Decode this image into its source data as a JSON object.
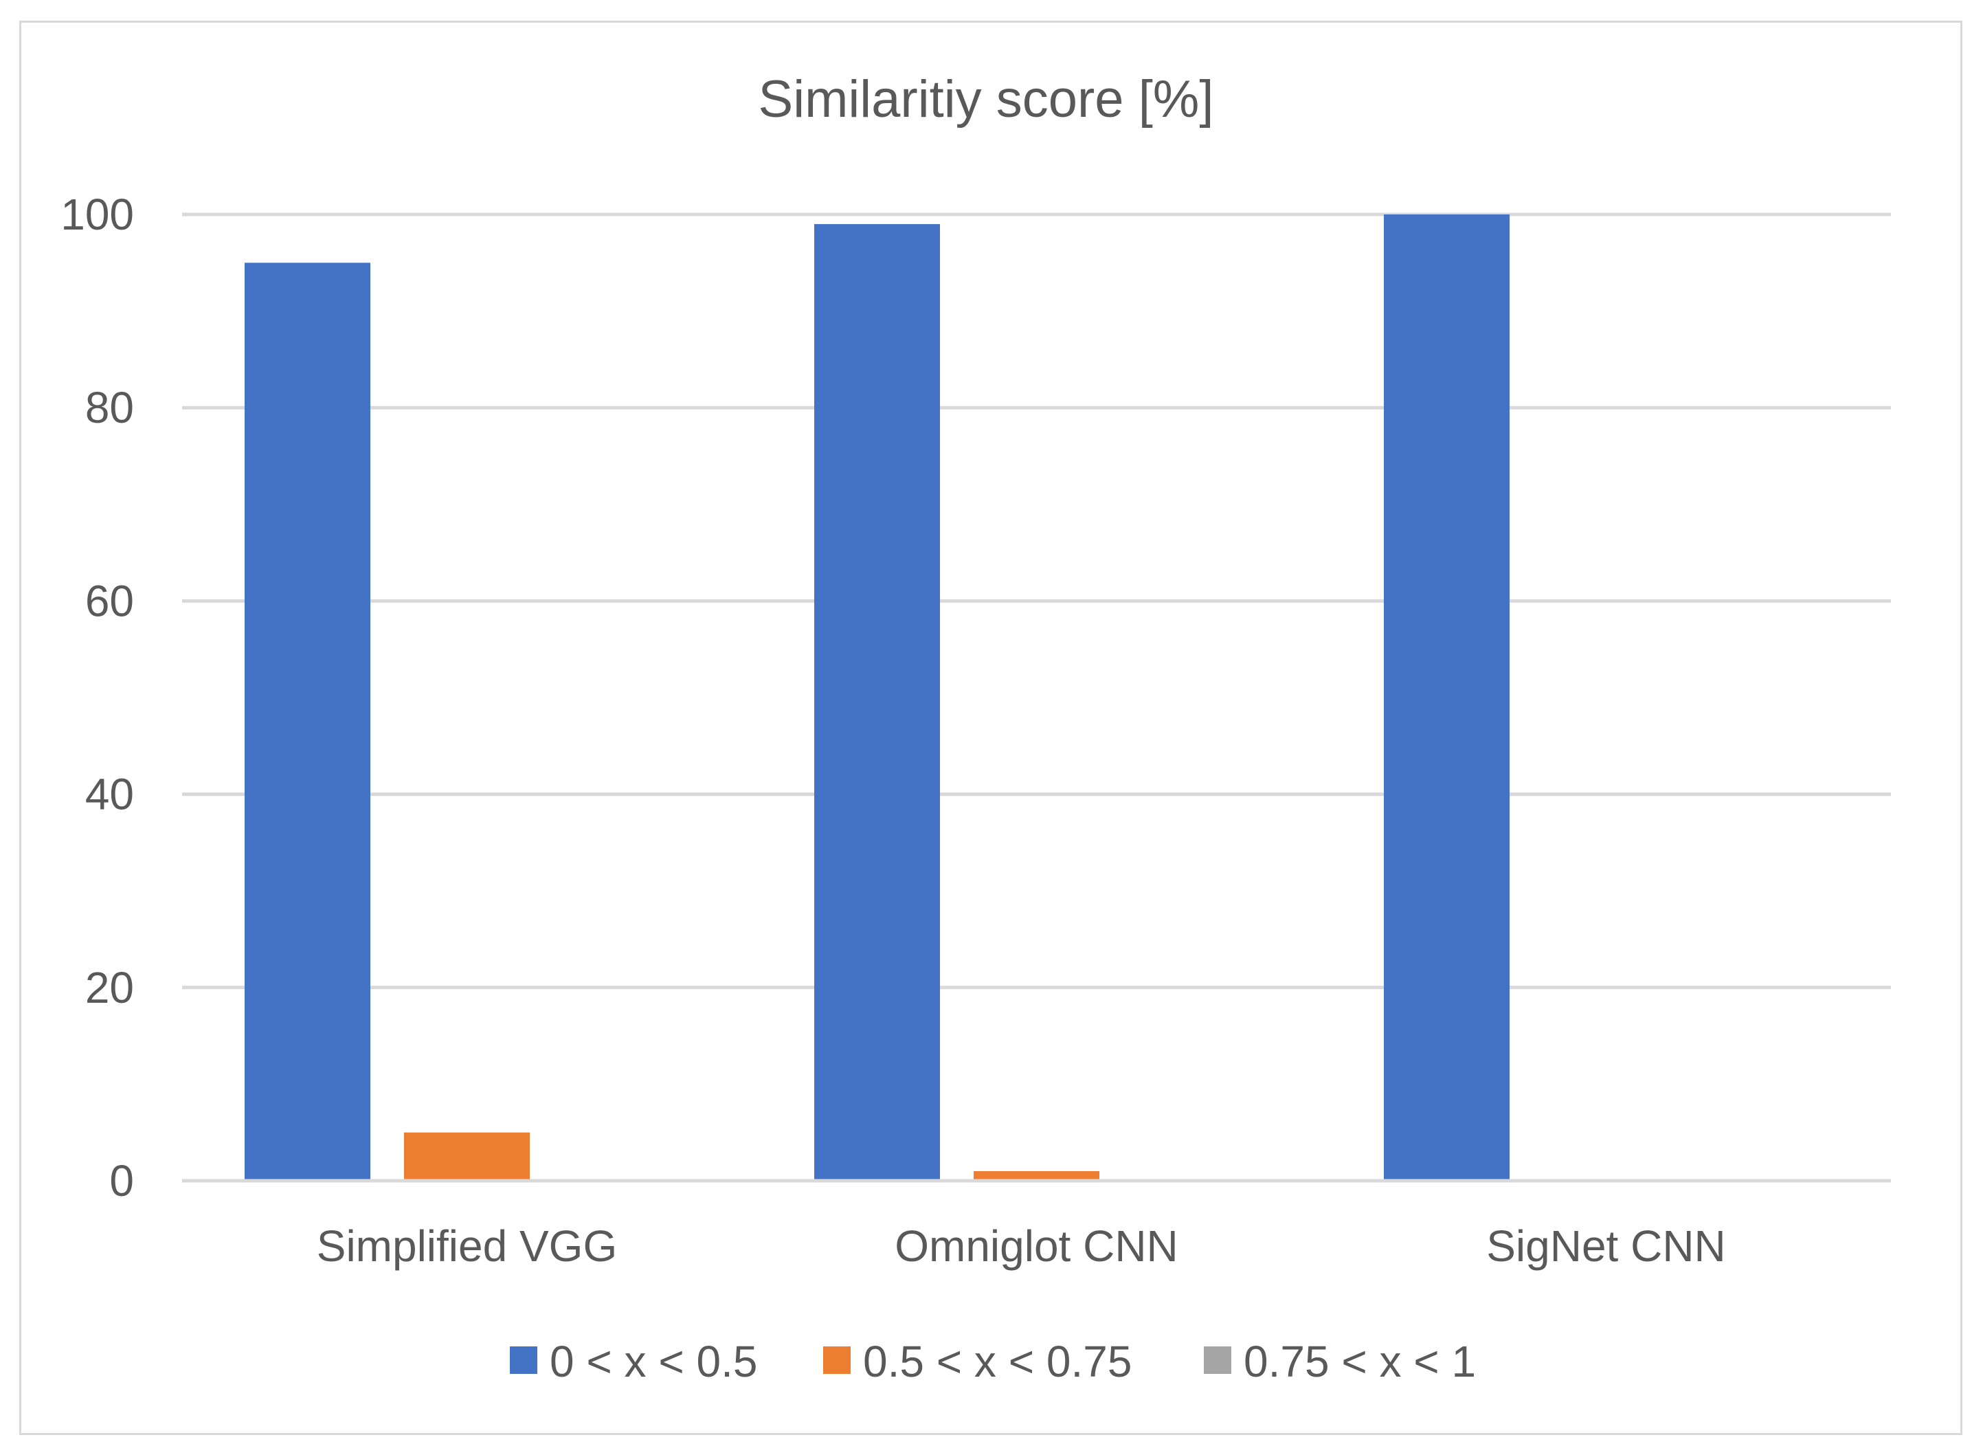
{
  "chart_data": {
    "type": "bar",
    "title": "Similaritiy score [%]",
    "xlabel": "",
    "ylabel": "",
    "categories": [
      "Simplified VGG",
      "Omniglot CNN",
      "SigNet CNN"
    ],
    "series": [
      {
        "name": "0 < x < 0.5",
        "color": "#4472c4",
        "values": [
          95,
          99,
          100
        ]
      },
      {
        "name": "0.5 < x < 0.75",
        "color": "#ed7d31",
        "values": [
          5,
          1,
          0
        ]
      },
      {
        "name": "0.75 < x < 1",
        "color": "#a5a5a5",
        "values": [
          0,
          0,
          0
        ]
      }
    ],
    "yticks": [
      "0",
      "20",
      "40",
      "60",
      "80",
      "100"
    ],
    "ylim": [
      0,
      100
    ],
    "grid": true,
    "legend_position": "bottom"
  }
}
